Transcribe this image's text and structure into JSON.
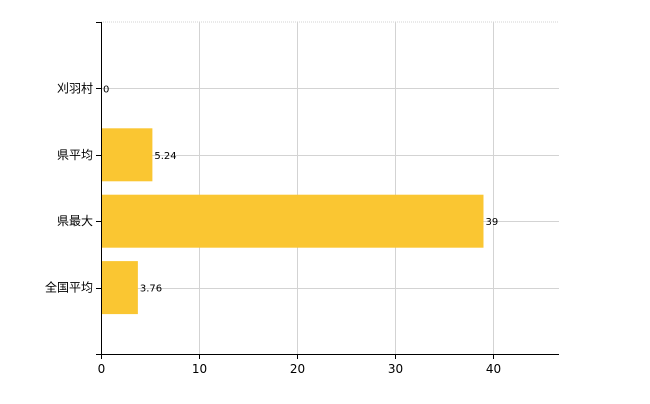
{
  "chart_data": {
    "type": "bar",
    "orientation": "horizontal",
    "categories": [
      "刈羽村",
      "県平均",
      "県最大",
      "全国平均"
    ],
    "values": [
      0,
      5.24,
      39,
      3.76
    ],
    "value_labels": [
      "0",
      "5.24",
      "39",
      "3.76"
    ],
    "x_ticks": [
      0,
      10,
      20,
      30,
      40
    ],
    "xlim": [
      0,
      46.7
    ],
    "grid": true,
    "bar_color": "#FAC632",
    "grid_color": "#D3D3D3",
    "axis_color": "#000000"
  }
}
